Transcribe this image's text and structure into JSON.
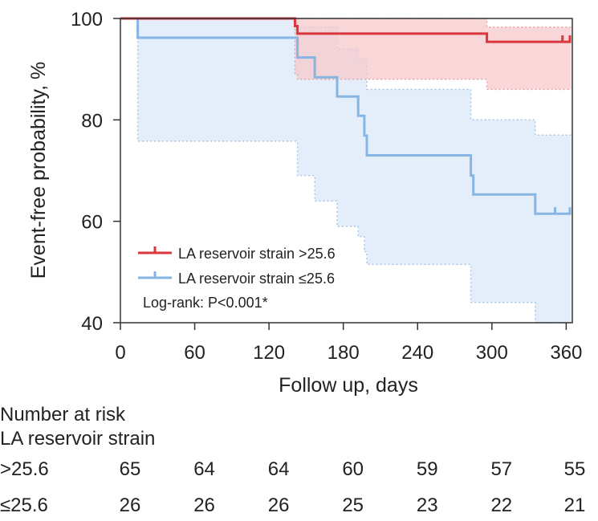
{
  "chart_data": {
    "type": "line",
    "subtype": "kaplan-meier",
    "xlabel": "Follow up, days",
    "ylabel": "Event-free probability, %",
    "xlim": [
      0,
      365
    ],
    "ylim": [
      40,
      100
    ],
    "xticks": [
      0,
      60,
      120,
      180,
      240,
      300,
      360
    ],
    "yticks": [
      40,
      60,
      80,
      100
    ],
    "legend_position": "bottom-left",
    "annotation": "Log-rank: P<0.001*",
    "series": [
      {
        "name": "LA reservoir strain >25.6",
        "color": "#d9363e",
        "band_color": "#f7c9cc",
        "band_edge_color": "#e3a5a8",
        "steps": [
          [
            0,
            100
          ],
          [
            141,
            100
          ],
          [
            141,
            98.5
          ],
          [
            143,
            98.5
          ],
          [
            143,
            97
          ],
          [
            296,
            97
          ],
          [
            296,
            95.4
          ],
          [
            364,
            95.4
          ]
        ],
        "lower": [
          [
            0,
            100
          ],
          [
            141,
            100
          ],
          [
            141,
            89
          ],
          [
            143,
            89
          ],
          [
            143,
            88
          ],
          [
            296,
            88
          ],
          [
            296,
            86
          ],
          [
            364,
            86
          ]
        ],
        "upper": [
          [
            0,
            100
          ],
          [
            141,
            100
          ],
          [
            143,
            100
          ],
          [
            296,
            100
          ],
          [
            296,
            98.3
          ],
          [
            364,
            98.3
          ]
        ],
        "censor_x": [
          357,
          363
        ]
      },
      {
        "name": "LA reservoir strain ≤25.6",
        "color": "#86b5e3",
        "band_color": "#e4eefb",
        "band_edge_color": "#a8c5e3",
        "steps": [
          [
            0,
            100
          ],
          [
            14,
            100
          ],
          [
            14,
            96.2
          ],
          [
            143,
            96.2
          ],
          [
            143,
            92.3
          ],
          [
            157,
            92.3
          ],
          [
            157,
            88.4
          ],
          [
            175,
            88.4
          ],
          [
            175,
            84.6
          ],
          [
            192,
            84.6
          ],
          [
            192,
            80.8
          ],
          [
            197,
            80.8
          ],
          [
            197,
            76.9
          ],
          [
            199,
            76.9
          ],
          [
            199,
            73
          ],
          [
            283,
            73
          ],
          [
            283,
            69
          ],
          [
            285,
            69
          ],
          [
            285,
            65.3
          ],
          [
            335,
            65.3
          ],
          [
            335,
            61.5
          ],
          [
            364,
            61.5
          ]
        ],
        "lower": [
          [
            0,
            100
          ],
          [
            14,
            100
          ],
          [
            14,
            75.8
          ],
          [
            143,
            75.8
          ],
          [
            143,
            69
          ],
          [
            157,
            69
          ],
          [
            157,
            64
          ],
          [
            175,
            64
          ],
          [
            175,
            59
          ],
          [
            192,
            59
          ],
          [
            192,
            57
          ],
          [
            197,
            57
          ],
          [
            197,
            54
          ],
          [
            199,
            54
          ],
          [
            199,
            51.5
          ],
          [
            283,
            51.5
          ],
          [
            283,
            44
          ],
          [
            335,
            44
          ],
          [
            335,
            40
          ],
          [
            364,
            40
          ]
        ],
        "upper": [
          [
            0,
            100
          ],
          [
            143,
            100
          ],
          [
            143,
            98.3
          ],
          [
            175,
            98.3
          ],
          [
            175,
            94
          ],
          [
            192,
            94
          ],
          [
            192,
            92
          ],
          [
            199,
            92
          ],
          [
            199,
            86
          ],
          [
            283,
            86
          ],
          [
            283,
            80
          ],
          [
            335,
            80
          ],
          [
            335,
            77
          ],
          [
            364,
            77
          ]
        ],
        "censor_x": [
          351,
          363
        ]
      }
    ]
  },
  "risk_table": {
    "title": "Number at risk",
    "subtitle": "LA reservoir strain",
    "columns": [
      0,
      60,
      120,
      180,
      240,
      300,
      360
    ],
    "rows": [
      {
        "label": ">25.6",
        "values": [
          "65",
          "64",
          "64",
          "60",
          "59",
          "57",
          "55"
        ]
      },
      {
        "label": "≤25.6",
        "values": [
          "26",
          "26",
          "26",
          "25",
          "23",
          "22",
          "21"
        ]
      }
    ]
  }
}
